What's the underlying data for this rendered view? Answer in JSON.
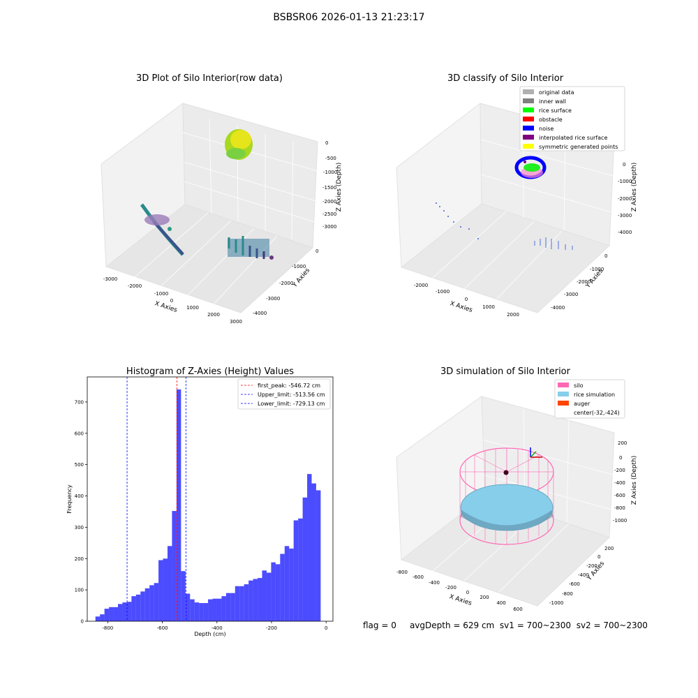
{
  "figure": {
    "title": "BSBSR06 2026-01-13 21:23:17"
  },
  "panels": {
    "raw": {
      "title": "3D Plot of Silo Interior(row data)",
      "xlabel": "X Axies",
      "ylabel": "Y Axies",
      "zlabel": "Z Axies (Depth)",
      "xticks": [
        "-3000",
        "-2000",
        "-1000",
        "0",
        "1000",
        "2000",
        "3000"
      ],
      "yticks": [
        "0",
        "-1000",
        "-2000",
        "-3000",
        "-4000"
      ],
      "zticks": [
        "0",
        "-500",
        "-1000",
        "-1500",
        "-2000",
        "-2500",
        "-3000"
      ]
    },
    "classify": {
      "title": "3D classify of Silo Interior",
      "xlabel": "X Axies",
      "ylabel": "Y Axies",
      "zlabel": "Z Axies (Depth)",
      "xticks": [
        "-2000",
        "-1000",
        "0",
        "1000",
        "2000"
      ],
      "yticks": [
        "0",
        "-1000",
        "-2000",
        "-3000",
        "-4000"
      ],
      "zticks": [
        "0",
        "-1000",
        "-2000",
        "-3000",
        "-4000"
      ],
      "legend": [
        {
          "label": "original data",
          "color": "#b0b0b0"
        },
        {
          "label": "inner wall",
          "color": "#808080"
        },
        {
          "label": "rice surface",
          "color": "#00ff00"
        },
        {
          "label": "obstacle",
          "color": "#ff0000"
        },
        {
          "label": "noise",
          "color": "#0000ff"
        },
        {
          "label": "interpolated rice surface",
          "color": "#800080"
        },
        {
          "label": "symmetric generated points",
          "color": "#ffff00"
        }
      ]
    },
    "simulation": {
      "title": "3D simulation of Silo Interior",
      "xlabel": "X Axies",
      "ylabel": "Y Axies",
      "zlabel": "Z Axies (Depth)",
      "xticks": [
        "-800",
        "-600",
        "-400",
        "-200",
        "0",
        "200",
        "400",
        "600"
      ],
      "yticks": [
        "200",
        "0",
        "-200",
        "-400",
        "-600",
        "-800",
        "-1000"
      ],
      "zticks": [
        "200",
        "0",
        "-200",
        "-400",
        "-600",
        "-800",
        "-1000"
      ],
      "legend": [
        {
          "label": "silo",
          "color": "#ff69b4"
        },
        {
          "label": "rice simulation",
          "color": "#87ceeb"
        },
        {
          "label": "auger",
          "color": "#ff4500"
        },
        {
          "label": "center(-32,-424)",
          "color": ""
        }
      ]
    }
  },
  "status": {
    "flag": "flag = 0",
    "avg_depth": "avgDepth = 629 cm",
    "sv1": "sv1 = 700~2300",
    "sv2": "sv2 = 700~2300"
  },
  "chart_data": {
    "type": "bar",
    "title": "Histogram of Z-Axies (Height) Values",
    "xlabel": "Depth (cm)",
    "ylabel": "Frequency",
    "xlim": [
      -875,
      25
    ],
    "ylim": [
      0,
      780
    ],
    "xticks": [
      -800,
      -600,
      -400,
      -200,
      0
    ],
    "yticks": [
      0,
      100,
      200,
      300,
      400,
      500,
      600,
      700
    ],
    "bin_start": -845,
    "bin_width": 16.5,
    "values": [
      15,
      22,
      40,
      45,
      45,
      55,
      60,
      62,
      80,
      85,
      95,
      105,
      115,
      122,
      195,
      200,
      240,
      352,
      740,
      160,
      88,
      70,
      60,
      58,
      58,
      70,
      72,
      72,
      80,
      90,
      90,
      112,
      112,
      118,
      130,
      135,
      138,
      162,
      155,
      188,
      182,
      215,
      240,
      232,
      322,
      328,
      395,
      470,
      440,
      418
    ],
    "bar_color": "#0000ff",
    "vlines": [
      {
        "label": "first_peak: -546.72 cm",
        "x": -546.72,
        "color": "#ff0000"
      },
      {
        "label": "Upper_limit: -513.56 cm",
        "x": -513.56,
        "color": "#0000ff"
      },
      {
        "label": "Lower_limit: -729.13 cm",
        "x": -729.13,
        "color": "#0000ff"
      }
    ]
  }
}
